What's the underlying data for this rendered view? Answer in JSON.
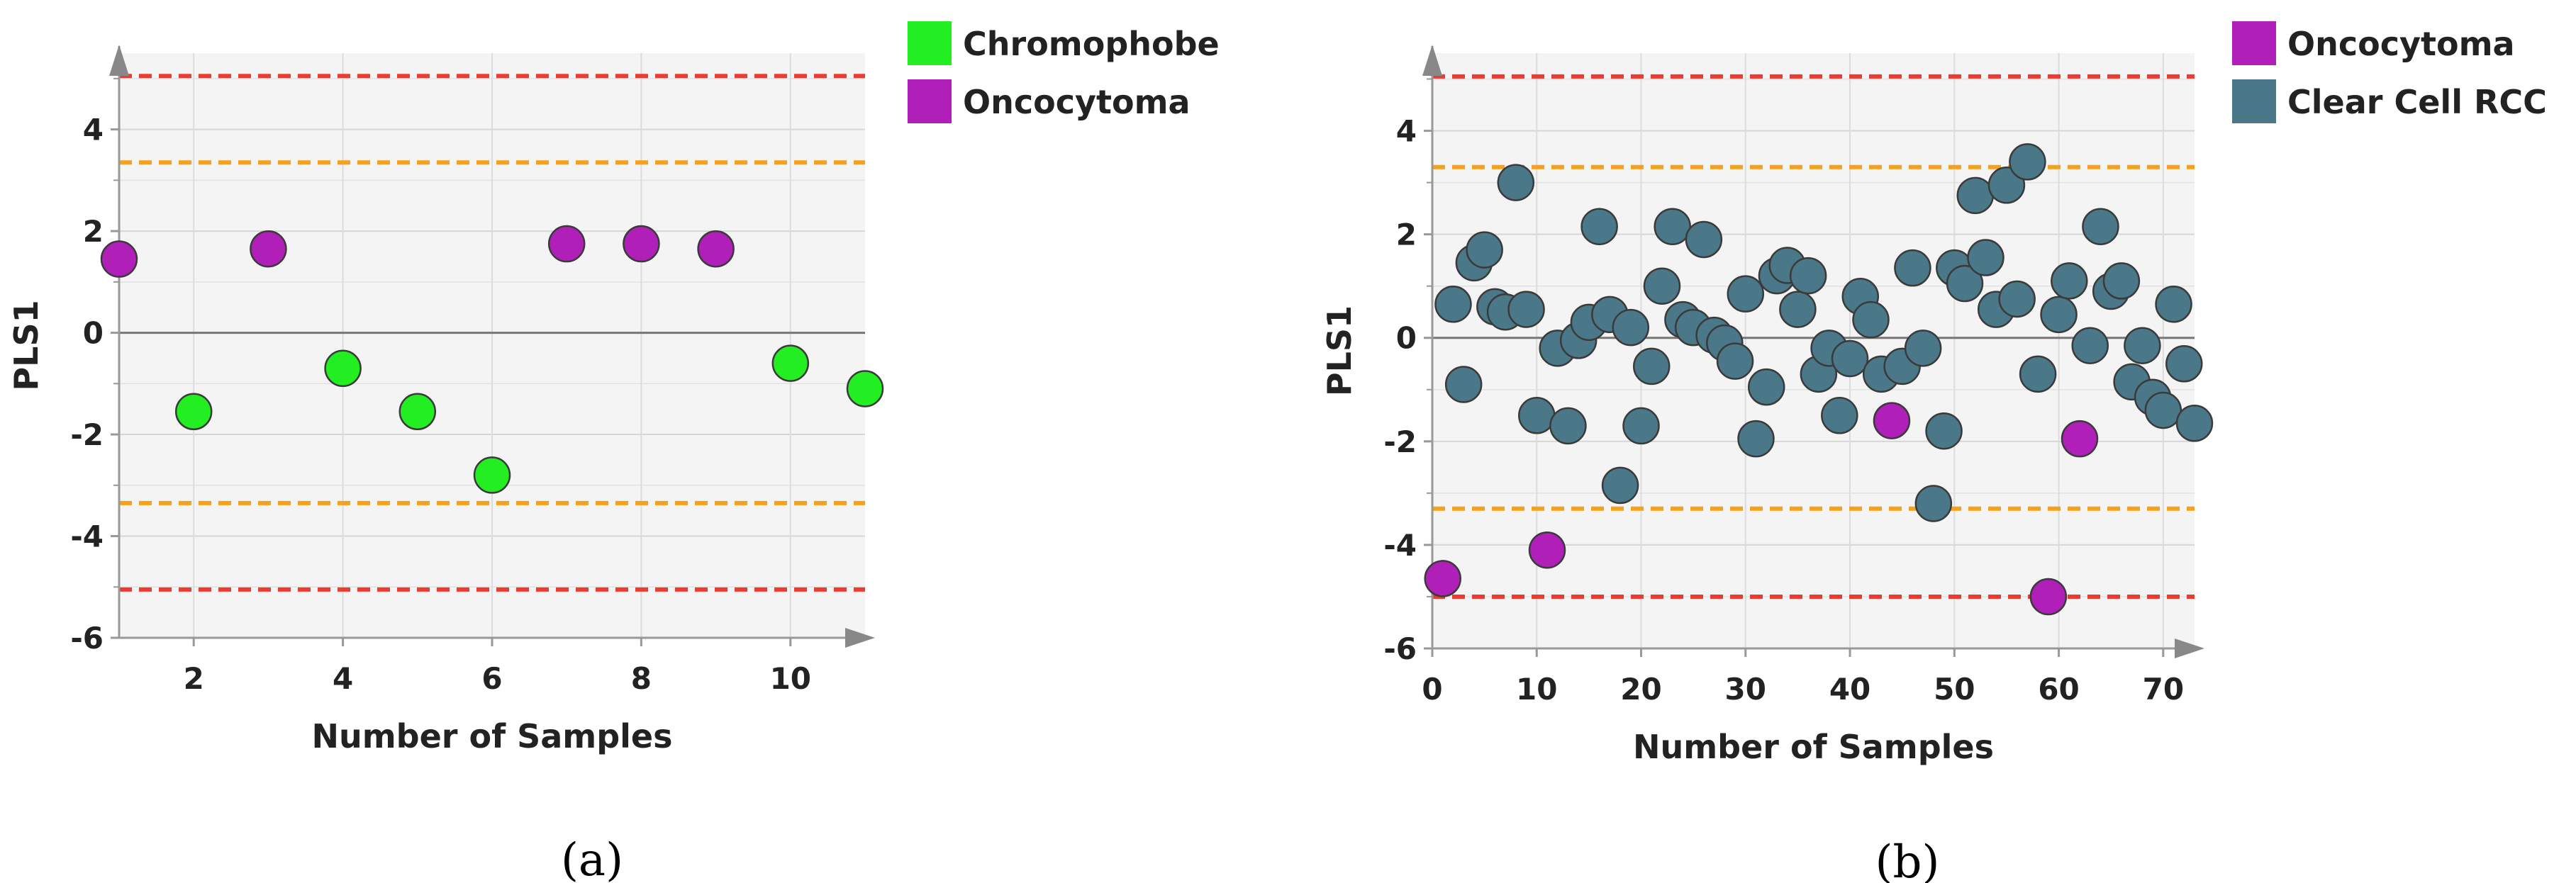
{
  "chart_data": [
    {
      "type": "scatter",
      "panel_label": "(a)",
      "xlabel": "Number of Samples",
      "ylabel": "PLS1",
      "xlim": [
        1,
        11
      ],
      "ylim": [
        -6,
        5.5
      ],
      "xticks": [
        2,
        4,
        6,
        8,
        10
      ],
      "yticks": [
        -6,
        -4,
        -2,
        0,
        2,
        4
      ],
      "limits": {
        "red": [
          5.05,
          -5.05
        ],
        "orange": [
          3.35,
          -3.35
        ]
      },
      "series": [
        {
          "name": "Chromophobe",
          "color": "#22ee22",
          "points": [
            [
              2,
              -1.55
            ],
            [
              4,
              -0.7
            ],
            [
              5,
              -1.55
            ],
            [
              6,
              -2.8
            ],
            [
              10,
              -0.6
            ],
            [
              11,
              -1.1
            ]
          ]
        },
        {
          "name": "Oncocytoma",
          "color": "#b020b8",
          "points": [
            [
              1,
              1.45
            ],
            [
              3,
              1.65
            ],
            [
              7,
              1.75
            ],
            [
              8,
              1.75
            ],
            [
              9,
              1.65
            ]
          ]
        }
      ],
      "legend": [
        {
          "label": "Chromophobe",
          "color": "#22ee22"
        },
        {
          "label": "Oncocytoma",
          "color": "#b020b8"
        }
      ]
    },
    {
      "type": "scatter",
      "panel_label": "(b)",
      "xlabel": "Number of Samples",
      "ylabel": "PLS1",
      "xlim": [
        0,
        73
      ],
      "ylim": [
        -6,
        5.5
      ],
      "xticks": [
        0,
        10,
        20,
        30,
        40,
        50,
        60,
        70
      ],
      "yticks": [
        -6,
        -4,
        -2,
        0,
        2,
        4
      ],
      "limits": {
        "red": [
          5.05,
          -5.0
        ],
        "orange": [
          3.3,
          -3.3
        ]
      },
      "series": [
        {
          "name": "Clear Cell RCC",
          "color": "#4a7888",
          "points": [
            [
              2,
              0.65
            ],
            [
              3,
              -0.9
            ],
            [
              4,
              1.45
            ],
            [
              5,
              1.7
            ],
            [
              6,
              0.6
            ],
            [
              7,
              0.5
            ],
            [
              8,
              3.0
            ],
            [
              9,
              0.55
            ],
            [
              10,
              -1.5
            ],
            [
              12,
              -0.2
            ],
            [
              13,
              -1.7
            ],
            [
              14,
              -0.05
            ],
            [
              15,
              0.3
            ],
            [
              16,
              2.15
            ],
            [
              17,
              0.45
            ],
            [
              18,
              -2.85
            ],
            [
              19,
              0.2
            ],
            [
              20,
              -1.7
            ],
            [
              21,
              -0.55
            ],
            [
              22,
              1.0
            ],
            [
              23,
              2.15
            ],
            [
              24,
              0.35
            ],
            [
              25,
              0.2
            ],
            [
              26,
              1.9
            ],
            [
              27,
              0.05
            ],
            [
              28,
              -0.1
            ],
            [
              29,
              -0.45
            ],
            [
              30,
              0.85
            ],
            [
              31,
              -1.95
            ],
            [
              32,
              -0.95
            ],
            [
              33,
              1.2
            ],
            [
              34,
              1.4
            ],
            [
              35,
              0.55
            ],
            [
              36,
              1.2
            ],
            [
              37,
              -0.7
            ],
            [
              38,
              -0.2
            ],
            [
              39,
              -1.5
            ],
            [
              40,
              -0.4
            ],
            [
              41,
              0.8
            ],
            [
              42,
              0.35
            ],
            [
              43,
              -0.7
            ],
            [
              45,
              -0.55
            ],
            [
              46,
              1.35
            ],
            [
              47,
              -0.2
            ],
            [
              48,
              -3.2
            ],
            [
              49,
              -1.8
            ],
            [
              50,
              1.35
            ],
            [
              51,
              1.05
            ],
            [
              52,
              2.75
            ],
            [
              53,
              1.55
            ],
            [
              54,
              0.55
            ],
            [
              55,
              2.95
            ],
            [
              56,
              0.75
            ],
            [
              57,
              3.4
            ],
            [
              58,
              -0.7
            ],
            [
              60,
              0.45
            ],
            [
              61,
              1.1
            ],
            [
              63,
              -0.15
            ],
            [
              64,
              2.15
            ],
            [
              65,
              0.9
            ],
            [
              66,
              1.1
            ],
            [
              67,
              -0.85
            ],
            [
              68,
              -0.15
            ],
            [
              69,
              -1.15
            ],
            [
              70,
              -1.4
            ],
            [
              71,
              0.65
            ],
            [
              72,
              -0.5
            ],
            [
              73,
              -1.65
            ]
          ]
        },
        {
          "name": "Oncocytoma",
          "color": "#b020b8",
          "points": [
            [
              1,
              -4.65
            ],
            [
              11,
              -4.1
            ],
            [
              44,
              -1.6
            ],
            [
              59,
              -5.0
            ],
            [
              62,
              -1.95
            ]
          ]
        }
      ],
      "legend": [
        {
          "label": "Oncocytoma",
          "color": "#b020b8"
        },
        {
          "label": "Clear Cell RCC",
          "color": "#4a7888"
        }
      ]
    }
  ]
}
